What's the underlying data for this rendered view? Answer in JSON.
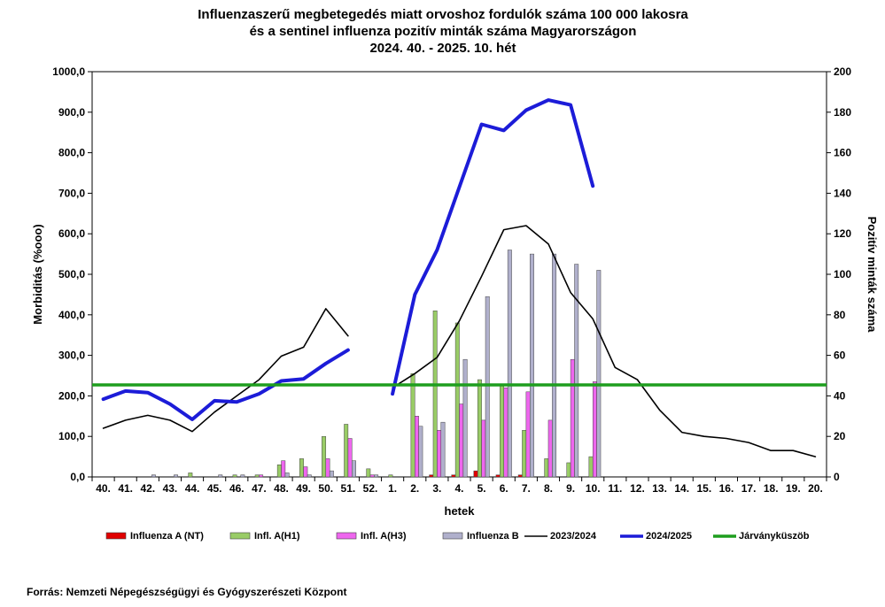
{
  "chart_data": {
    "type": "bar+line",
    "title_lines": [
      "Influenzaszerű megbetegedés miatt orvoshoz fordulók száma 100 000 lakosra",
      "és a sentinel influenza pozitív minták száma Magyarországon",
      "2024. 40. - 2025. 10. hét"
    ],
    "xlabel": "hetek",
    "ylabel_left": "Morbiditás (%ooo)",
    "ylabel_right": "Pozitív minták száma",
    "ylim_left": [
      0,
      1000
    ],
    "ylim_right": [
      0,
      200
    ],
    "yticks_left": [
      "0,0",
      "100,0",
      "200,0",
      "300,0",
      "400,0",
      "500,0",
      "600,0",
      "700,0",
      "800,0",
      "900,0",
      "1000,0"
    ],
    "yticks_right": [
      "0",
      "20",
      "40",
      "60",
      "80",
      "100",
      "120",
      "140",
      "160",
      "180",
      "200"
    ],
    "categories": [
      "40.",
      "41.",
      "42.",
      "43.",
      "44.",
      "45.",
      "46.",
      "47.",
      "48.",
      "49.",
      "50.",
      "51.",
      "52.",
      "1.",
      "2.",
      "3.",
      "4.",
      "5.",
      "6.",
      "7.",
      "8.",
      "9.",
      "10.",
      "11.",
      "12.",
      "13.",
      "14.",
      "15.",
      "16.",
      "17.",
      "18.",
      "19.",
      "20."
    ],
    "bar_series": [
      {
        "name": "Influenza A (NT)",
        "color": "#e00000",
        "axis": "right",
        "values": [
          0,
          0,
          0,
          0,
          0,
          0,
          0,
          0,
          0,
          0,
          0,
          0,
          0,
          0,
          0,
          1,
          1,
          3,
          1,
          1,
          0,
          0,
          0,
          null,
          null,
          null,
          null,
          null,
          null,
          null,
          null,
          null,
          null
        ]
      },
      {
        "name": "Infl. A(H1)",
        "color": "#99cc66",
        "axis": "right",
        "values": [
          0,
          0,
          0,
          0,
          2,
          0,
          1,
          1,
          6,
          9,
          20,
          26,
          4,
          1,
          51,
          82,
          76,
          48,
          45,
          23,
          9,
          7,
          10,
          null,
          null,
          null,
          null,
          null,
          null,
          null,
          null,
          null,
          null
        ]
      },
      {
        "name": "Infl. A(H3)",
        "color": "#ee66ee",
        "axis": "right",
        "values": [
          0,
          0,
          0,
          0,
          0,
          0,
          0,
          1,
          8,
          5,
          9,
          19,
          1,
          0,
          30,
          23,
          36,
          28,
          44,
          42,
          28,
          58,
          47,
          null,
          null,
          null,
          null,
          null,
          null,
          null,
          null,
          null,
          null
        ]
      },
      {
        "name": "Influenza B",
        "color": "#b0b0cc",
        "axis": "right",
        "values": [
          0,
          0,
          1,
          1,
          0,
          1,
          1,
          0,
          2,
          1,
          3,
          8,
          1,
          0,
          25,
          27,
          58,
          89,
          112,
          110,
          110,
          105,
          102,
          null,
          null,
          null,
          null,
          null,
          null,
          null,
          null,
          null,
          null
        ]
      }
    ],
    "line_series": [
      {
        "name": "2023/2024",
        "color": "#000000",
        "width": 1.6,
        "axis": "left",
        "values": [
          120,
          140,
          152,
          140,
          112,
          160,
          200,
          240,
          298,
          320,
          415,
          348,
          null,
          220,
          255,
          295,
          385,
          495,
          610,
          620,
          575,
          455,
          390,
          270,
          240,
          165,
          110,
          100,
          95,
          85,
          65,
          65,
          50
        ]
      },
      {
        "name": "2024/2025",
        "color": "#1c1cd8",
        "width": 4,
        "axis": "left",
        "values": [
          192,
          212,
          208,
          180,
          142,
          188,
          185,
          205,
          237,
          242,
          280,
          313,
          null,
          205,
          450,
          560,
          715,
          870,
          855,
          905,
          930,
          918,
          718,
          null,
          null,
          null,
          null,
          null,
          null,
          null,
          null,
          null,
          null
        ]
      },
      {
        "name": "Járványküszöb",
        "color": "#1e9e1e",
        "width": 3.5,
        "axis": "left",
        "constant": 227
      }
    ],
    "legend": [
      "Influenza A (NT)",
      "Infl. A(H1)",
      "Infl. A(H3)",
      "Influenza B",
      "2023/2024",
      "2024/2025",
      "Járványküszöb"
    ],
    "legend_position": "bottom"
  },
  "source": "Forrás: Nemzeti Népegészségügyi és Gyógyszerészeti Központ"
}
